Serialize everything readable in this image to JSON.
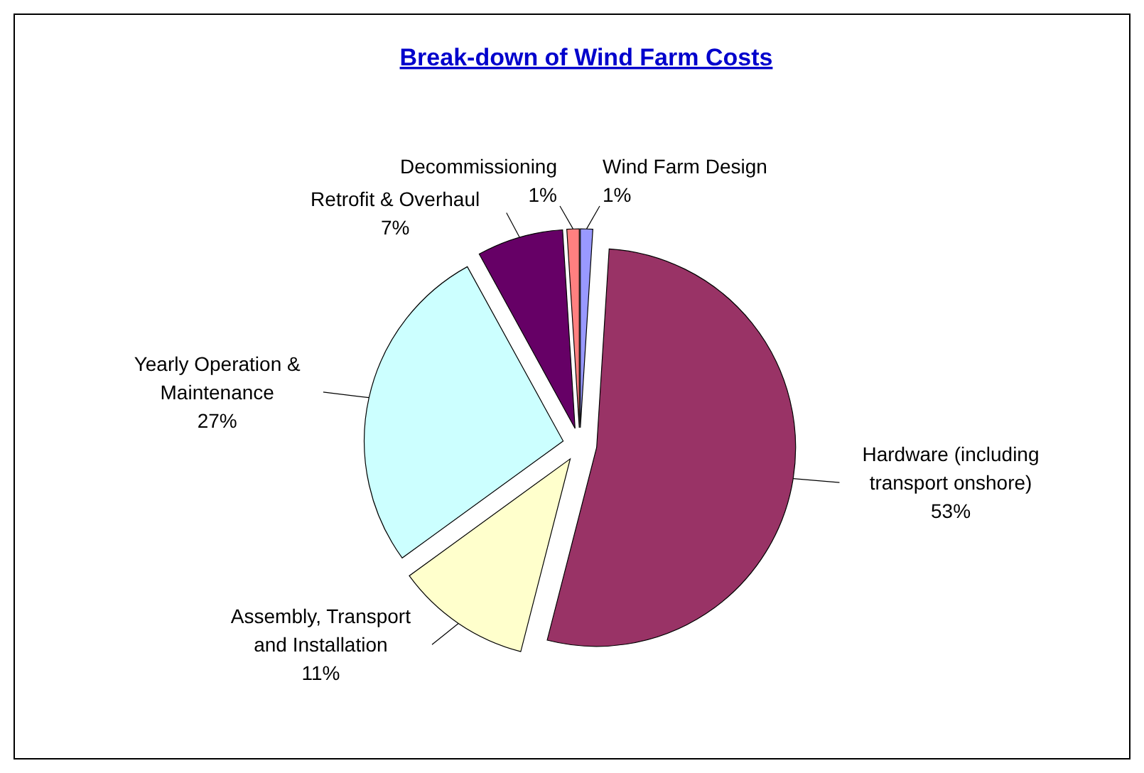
{
  "chart_data": {
    "type": "pie",
    "title": "Break-down of Wind Farm Costs",
    "categories": [
      "Wind Farm Design",
      "Hardware (including\ntransport onshore)",
      "Assembly, Transport\nand Installation",
      "Yearly Operation &\nMaintenance",
      "Retrofit & Overhaul",
      "Decommissioning"
    ],
    "values": [
      1,
      53,
      11,
      27,
      7,
      1
    ],
    "value_labels": [
      "1%",
      "53%",
      "11%",
      "27%",
      "7%",
      "1%"
    ],
    "colors": [
      "#9999ff",
      "#993366",
      "#ffffcc",
      "#ccffff",
      "#660066",
      "#ff8080"
    ]
  }
}
